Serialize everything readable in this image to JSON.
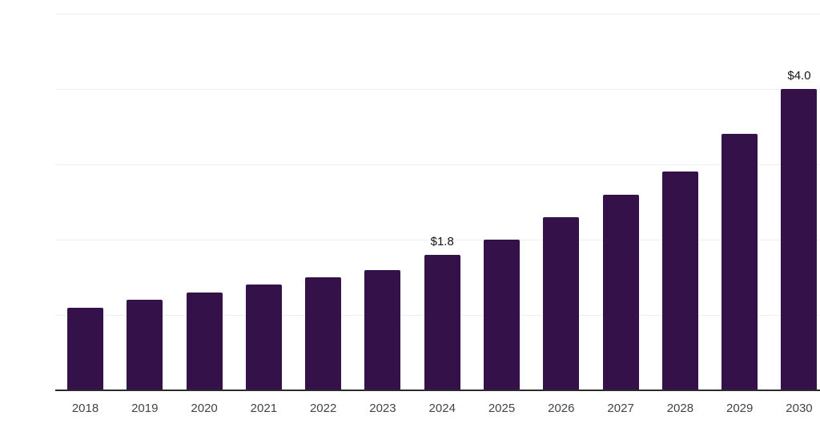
{
  "chart_data": {
    "type": "bar",
    "title": "",
    "xlabel": "",
    "ylabel": "",
    "categories": [
      "2018",
      "2019",
      "2020",
      "2021",
      "2022",
      "2023",
      "2024",
      "2025",
      "2026",
      "2027",
      "2028",
      "2029",
      "2030"
    ],
    "values": [
      1.1,
      1.2,
      1.3,
      1.4,
      1.5,
      1.6,
      1.8,
      2.0,
      2.3,
      2.6,
      2.9,
      3.4,
      4.0
    ],
    "data_labels": [
      "",
      "",
      "",
      "",
      "",
      "",
      "$1.8",
      "",
      "",
      "",
      "",
      "",
      "$4.0"
    ],
    "ylim": [
      0,
      5
    ],
    "gridline_values": [
      1,
      2,
      3,
      4,
      5
    ],
    "grid": "horizontal",
    "legend": "none",
    "y_tick_labels_visible": false
  },
  "colors": {
    "bar": "#35114a",
    "axis": "#2b2b2b",
    "gridline": "#eeeeee",
    "tick_label": "#444444",
    "data_label": "#141414",
    "background": "#ffffff"
  }
}
